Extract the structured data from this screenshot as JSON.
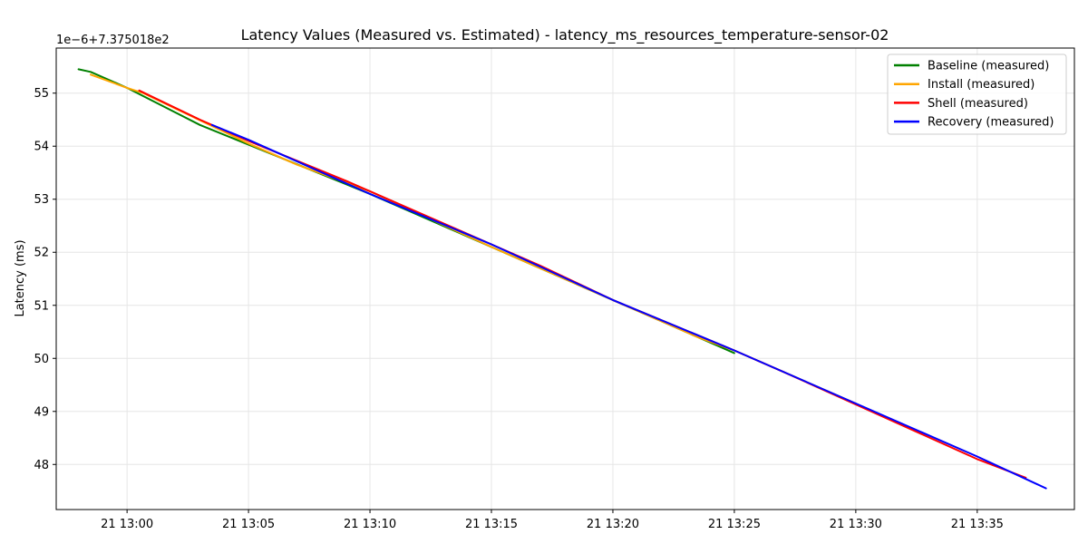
{
  "chart_data": {
    "type": "line",
    "title": "Latency Values (Measured vs. Estimated) - latency_ms_resources_temperature-sensor-02",
    "xlabel": "",
    "ylabel": "Latency (ms)",
    "y_offset_label": "1e−6+7.375018e2",
    "y_unit_note": "y values are in units of 1e-6 added to 737.5018",
    "x_ticks": [
      "21 13:00",
      "21 13:05",
      "21 13:10",
      "21 13:15",
      "21 13:20",
      "21 13:25",
      "21 13:30",
      "21 13:35"
    ],
    "y_ticks": [
      "48",
      "49",
      "50",
      "51",
      "52",
      "53",
      "54",
      "55"
    ],
    "xlim": [
      "21 12:57:05",
      "21 13:39:00"
    ],
    "ylim": [
      47.15,
      55.85
    ],
    "grid": true,
    "legend_position": "top-right",
    "series": [
      {
        "name": "Baseline (measured)",
        "color": "#008000",
        "x": [
          "21 12:58:00",
          "21 12:58:30",
          "21 13:00:00",
          "21 13:03:00",
          "21 13:10:00",
          "21 13:20:00",
          "21 13:25:00"
        ],
        "values": [
          55.45,
          55.4,
          55.1,
          54.4,
          53.1,
          51.1,
          50.1
        ]
      },
      {
        "name": "Install (measured)",
        "color": "#ffa500",
        "x": [
          "21 12:58:30",
          "21 13:00:00",
          "21 13:00:40",
          "21 13:05:00",
          "21 13:07:00",
          "21 13:10:00",
          "21 13:15:00",
          "21 13:20:00",
          "21 13:23:30",
          "21 13:25:00",
          "21 13:30:00"
        ],
        "values": [
          55.35,
          55.1,
          55.0,
          54.05,
          53.65,
          53.15,
          52.1,
          51.1,
          50.4,
          50.15,
          49.15
        ]
      },
      {
        "name": "Shell (measured)",
        "color": "#ff0000",
        "x": [
          "21 13:00:30",
          "21 13:03:00",
          "21 13:05:00",
          "21 13:09:00",
          "21 13:15:00",
          "21 13:17:00",
          "21 13:20:00",
          "21 13:25:00",
          "21 13:27:00",
          "21 13:35:00",
          "21 13:37:00"
        ],
        "values": [
          55.05,
          54.5,
          54.1,
          53.35,
          52.15,
          51.75,
          51.1,
          50.15,
          49.75,
          48.1,
          47.75
        ]
      },
      {
        "name": "Recovery (measured)",
        "color": "#0000ff",
        "x": [
          "21 13:03:30",
          "21 13:05:00",
          "21 13:10:00",
          "21 13:15:00",
          "21 13:20:00",
          "21 13:25:00",
          "21 13:30:00",
          "21 13:35:00",
          "21 13:37:50"
        ],
        "values": [
          54.4,
          54.12,
          53.1,
          52.15,
          51.1,
          50.15,
          49.15,
          48.15,
          47.55
        ]
      }
    ]
  }
}
